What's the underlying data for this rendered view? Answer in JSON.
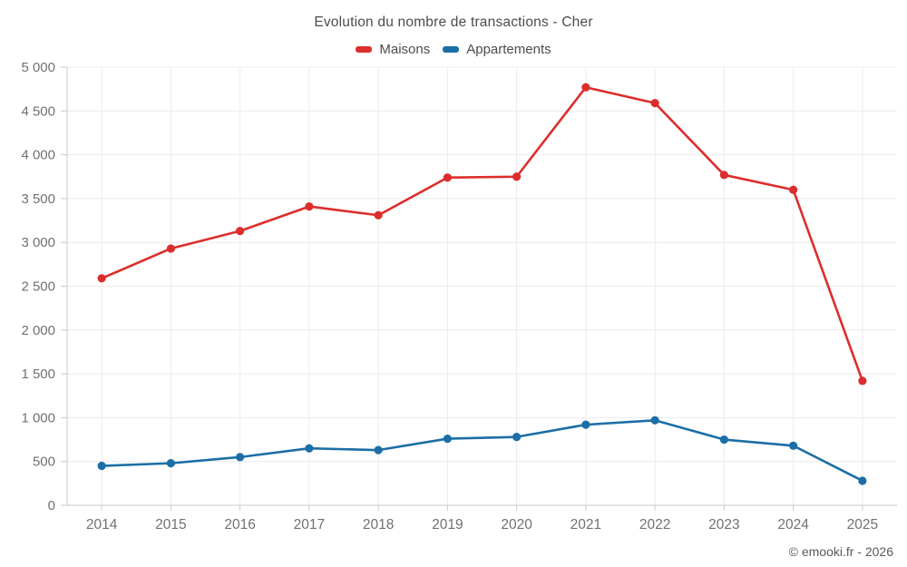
{
  "header": {
    "title": "Evolution du nombre de transactions - Cher"
  },
  "footer": {
    "credit": "© emooki.fr - 2026"
  },
  "chart_data": {
    "type": "line",
    "title": "Evolution du nombre de transactions - Cher",
    "categories": [
      "2014",
      "2015",
      "2016",
      "2017",
      "2018",
      "2019",
      "2020",
      "2021",
      "2022",
      "2023",
      "2024",
      "2025"
    ],
    "series": [
      {
        "name": "Maisons",
        "color": "#dc2e2c",
        "values": [
          2590,
          2930,
          3130,
          3410,
          3310,
          3740,
          3750,
          4770,
          4590,
          3770,
          3600,
          1420
        ]
      },
      {
        "name": "Appartements",
        "color": "#1c6ea6",
        "values": [
          450,
          480,
          550,
          650,
          630,
          760,
          780,
          920,
          970,
          750,
          680,
          280
        ]
      }
    ],
    "ylim": [
      0,
      5000
    ],
    "y_tick_step": 500,
    "y_tick_labels": [
      "0",
      "500",
      "1 000",
      "1 500",
      "2 000",
      "2 500",
      "3 000",
      "3 500",
      "4 000",
      "4 500",
      "5 000"
    ],
    "xlabel": "",
    "ylabel": "",
    "grid": true,
    "legend_position": "top",
    "colors": {
      "grid_line": "#ececec",
      "axis_line": "#c9c9c9",
      "tick_label": "#717171",
      "title_text": "#4c4c4c"
    }
  }
}
